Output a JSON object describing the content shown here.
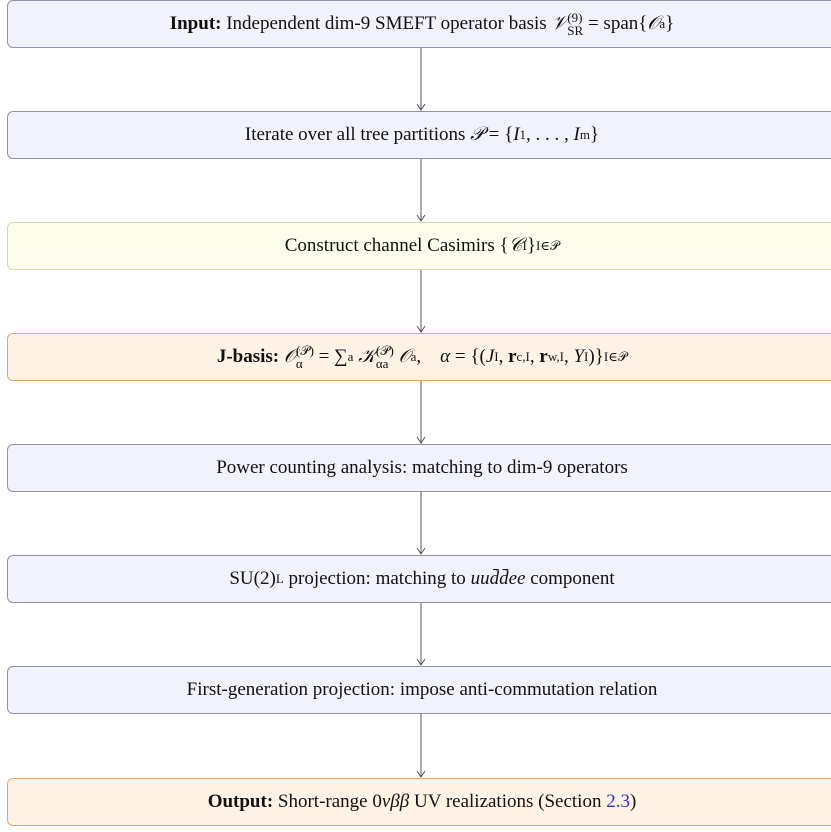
{
  "nodes": [
    {
      "style": "blue",
      "parts": [
        {
          "t": "Input:",
          "s": "b"
        },
        {
          "t": " Independent dim-9 SMEFT operator basis "
        },
        {
          "t": "𝒱",
          "s": "i"
        },
        {
          "t": "SR",
          "s": "sub"
        },
        {
          "t": "(9)",
          "s": "sup"
        },
        {
          "t": " = span{"
        },
        {
          "t": "𝒪",
          "s": "i"
        },
        {
          "t": "a",
          "s": "sub"
        },
        {
          "t": "}"
        }
      ]
    },
    {
      "style": "blue",
      "parts": [
        {
          "t": "Iterate over all tree partitions "
        },
        {
          "t": "𝒫",
          "s": "i"
        },
        {
          "t": " = {"
        },
        {
          "t": "I",
          "s": "i"
        },
        {
          "t": "1",
          "s": "sub"
        },
        {
          "t": ", . . . , "
        },
        {
          "t": "I",
          "s": "i"
        },
        {
          "t": "m",
          "s": "sub"
        },
        {
          "t": "}"
        }
      ]
    },
    {
      "style": "yellow",
      "parts": [
        {
          "t": "Construct channel Casimirs {"
        },
        {
          "t": "𝒞",
          "s": "i"
        },
        {
          "t": "I",
          "s": "sub"
        },
        {
          "t": "}"
        },
        {
          "t": "I∈𝒫",
          "s": "sub"
        }
      ]
    },
    {
      "style": "orange",
      "parts": [
        {
          "t": "J-basis: ",
          "s": "b"
        },
        {
          "t": "𝒪",
          "s": "i"
        },
        {
          "t": "α",
          "s": "sub"
        },
        {
          "t": "(𝒫)",
          "s": "sup"
        },
        {
          "t": " = ∑"
        },
        {
          "t": "a",
          "s": "sub"
        },
        {
          "t": " "
        },
        {
          "t": "𝒦",
          "s": "i"
        },
        {
          "t": "αa",
          "s": "sub"
        },
        {
          "t": "(𝒫)",
          "s": "sup"
        },
        {
          "t": " "
        },
        {
          "t": "𝒪",
          "s": "i"
        },
        {
          "t": "a",
          "s": "sub"
        },
        {
          "t": ",    "
        },
        {
          "t": "α",
          "s": "i"
        },
        {
          "t": " = {("
        },
        {
          "t": "J",
          "s": "i"
        },
        {
          "t": "I",
          "s": "sub"
        },
        {
          "t": ", "
        },
        {
          "t": "r",
          "s": "b"
        },
        {
          "t": "c,I",
          "s": "sub"
        },
        {
          "t": ", "
        },
        {
          "t": "r",
          "s": "b"
        },
        {
          "t": "w,I",
          "s": "sub"
        },
        {
          "t": ", "
        },
        {
          "t": "Y",
          "s": "i"
        },
        {
          "t": "I",
          "s": "sub"
        },
        {
          "t": ")}"
        },
        {
          "t": "I∈𝒫",
          "s": "sub"
        }
      ]
    },
    {
      "style": "blue",
      "parts": [
        {
          "t": "Power counting analysis: matching to dim-9 operators"
        }
      ]
    },
    {
      "style": "blue",
      "parts": [
        {
          "t": "SU(2)"
        },
        {
          "t": "L",
          "s": "sub"
        },
        {
          "t": " projection: matching to "
        },
        {
          "t": "uud̄d̄ee",
          "s": "i"
        },
        {
          "t": " component"
        }
      ]
    },
    {
      "style": "blue",
      "parts": [
        {
          "t": "First-generation projection: impose anti-commutation relation"
        }
      ]
    },
    {
      "style": "orange",
      "parts": [
        {
          "t": "Output:",
          "s": "b"
        },
        {
          "t": " Short-range 0"
        },
        {
          "t": "νββ",
          "s": "i"
        },
        {
          "t": " UV realizations (Section "
        },
        {
          "t": "2.3",
          "s": "link"
        },
        {
          "t": ")"
        }
      ]
    }
  ]
}
